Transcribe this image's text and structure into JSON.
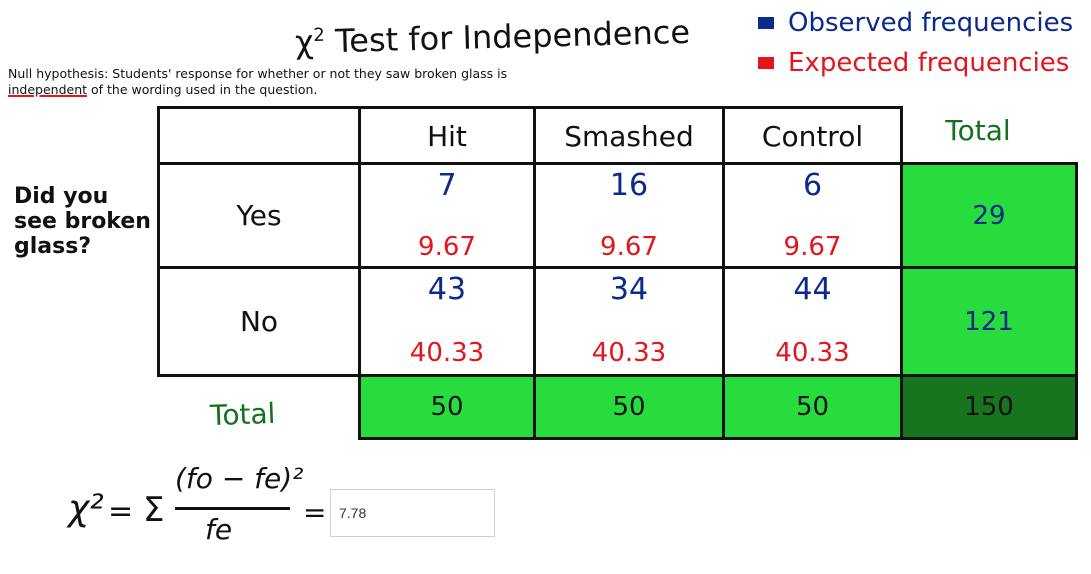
{
  "title": {
    "main": "χ",
    "sup": "2",
    "rest": " Test for Independence"
  },
  "legend": {
    "observed": {
      "label": "Observed frequencies",
      "color": "#0b2a8c"
    },
    "expected": {
      "label": "Expected frequencies",
      "color": "#e3151d"
    }
  },
  "null_hypothesis": {
    "prefix": "Null hypothesis: Students' response for whether or not they saw broken glass is ",
    "underlined": "independent",
    "suffix": " of the wording used in the question."
  },
  "row_group_label": "Did you see broken glass?",
  "table": {
    "columns": [
      "Hit",
      "Smashed",
      "Control"
    ],
    "total_label": "Total",
    "rows": [
      {
        "label": "Yes",
        "observed": [
          "7",
          "16",
          "6"
        ],
        "expected": [
          "9.67",
          "9.67",
          "9.67"
        ],
        "total": "29"
      },
      {
        "label": "No",
        "observed": [
          "43",
          "34",
          "44"
        ],
        "expected": [
          "40.33",
          "40.33",
          "40.33"
        ],
        "total": "121"
      }
    ],
    "column_totals": [
      "50",
      "50",
      "50"
    ],
    "grand_total": "150",
    "colors": {
      "total_green": "#27dc3c",
      "grand_total_green": "#16751e",
      "total_label": "#157020"
    }
  },
  "formula": {
    "lhs": "χ²",
    "equals": "=",
    "sigma": "Σ",
    "numerator": "(fo − fe)²",
    "denominator": "fe",
    "equals2": "=",
    "result": "7.78"
  }
}
